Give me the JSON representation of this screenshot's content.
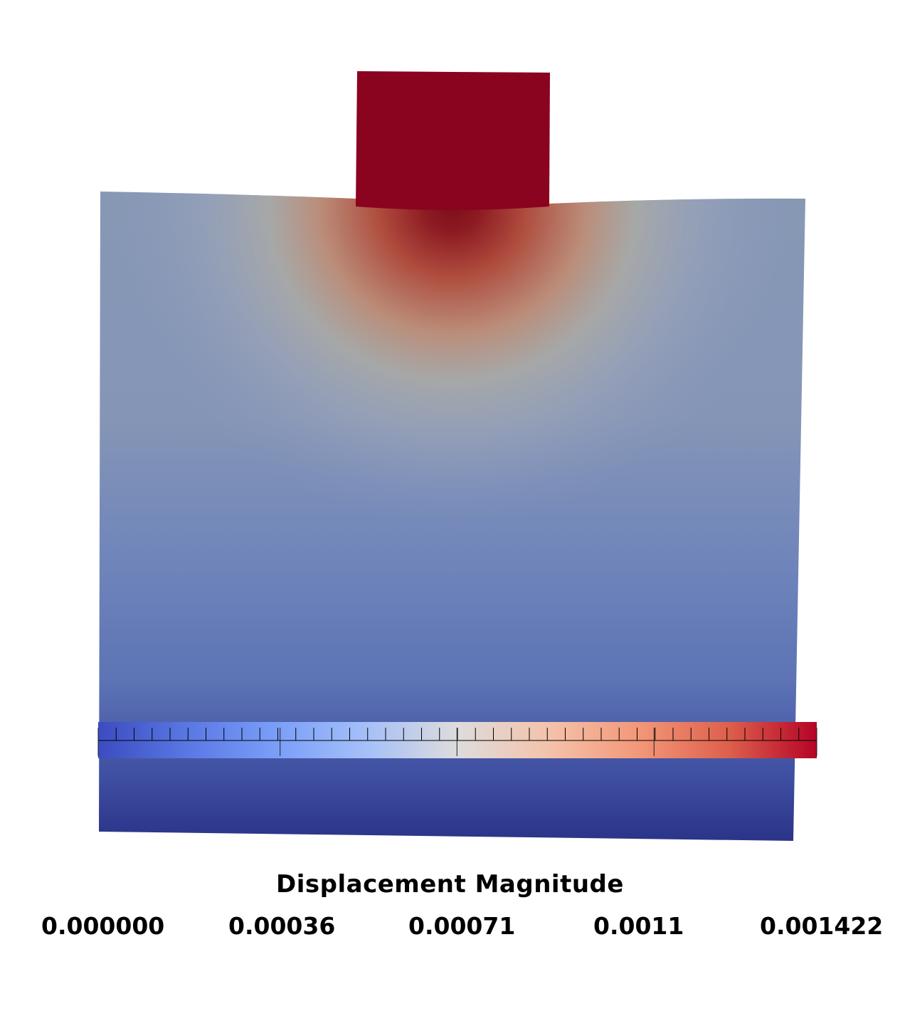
{
  "colorbar": {
    "title": "Displacement Magnitude",
    "range": [
      0.0,
      0.001422
    ],
    "colormap": "Cool to Warm",
    "colors": {
      "low": "#3b4cc0",
      "mid": "#dddddd",
      "high": "#b40426"
    },
    "tick_labels": [
      "0.000000",
      "0.00036",
      "0.00071",
      "0.0011",
      "0.001422"
    ],
    "tick_values": [
      0.0,
      0.00036,
      0.00071,
      0.0011,
      0.001422
    ],
    "minor_tick_count": 40
  },
  "scene": {
    "bodies": [
      "indenter-block",
      "deformed-substrate"
    ],
    "indenter_color": "#8a031f",
    "substrate_bottom_color": "#2c3589",
    "substrate_top_color": "#8197b8",
    "hotspot_color": "#8e1320"
  }
}
